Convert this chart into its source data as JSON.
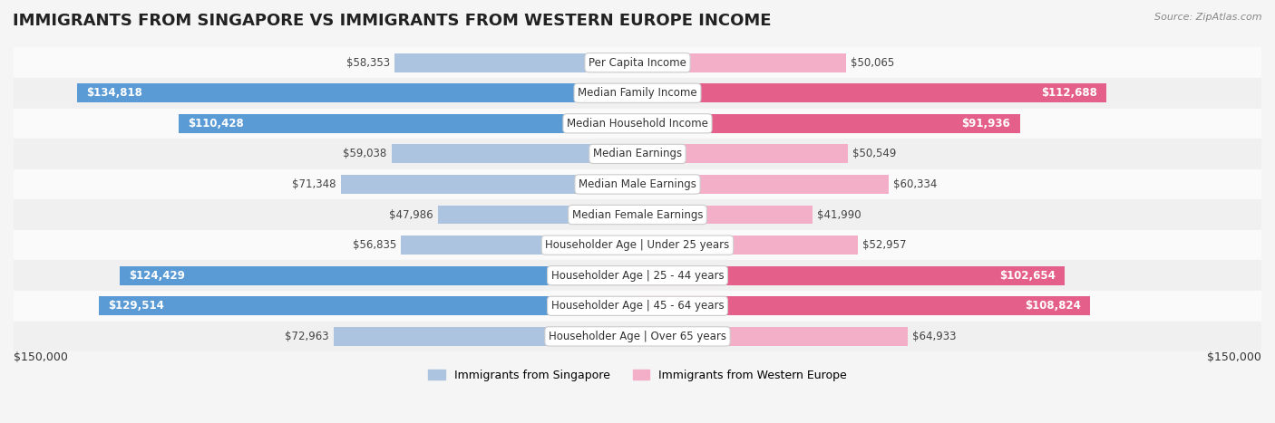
{
  "title": "IMMIGRANTS FROM SINGAPORE VS IMMIGRANTS FROM WESTERN EUROPE INCOME",
  "source": "Source: ZipAtlas.com",
  "categories": [
    "Per Capita Income",
    "Median Family Income",
    "Median Household Income",
    "Median Earnings",
    "Median Male Earnings",
    "Median Female Earnings",
    "Householder Age | Under 25 years",
    "Householder Age | 25 - 44 years",
    "Householder Age | 45 - 64 years",
    "Householder Age | Over 65 years"
  ],
  "singapore_values": [
    58353,
    134818,
    110428,
    59038,
    71348,
    47986,
    56835,
    124429,
    129514,
    72963
  ],
  "western_europe_values": [
    50065,
    112688,
    91936,
    50549,
    60334,
    41990,
    52957,
    102654,
    108824,
    64933
  ],
  "singapore_labels": [
    "$58,353",
    "$134,818",
    "$110,428",
    "$59,038",
    "$71,348",
    "$47,986",
    "$56,835",
    "$124,429",
    "$129,514",
    "$72,963"
  ],
  "western_europe_labels": [
    "$50,065",
    "$112,688",
    "$91,936",
    "$50,549",
    "$60,334",
    "$41,990",
    "$52,957",
    "$102,654",
    "$108,824",
    "$64,933"
  ],
  "singapore_color_light": "#adc4e0",
  "singapore_color_dark": "#5b9bd5",
  "western_europe_color_light": "#f4afc8",
  "western_europe_color_dark": "#e4608a",
  "bar_height": 0.62,
  "max_value": 150000,
  "inside_label_threshold": 0.58,
  "x_axis_label_left": "$150,000",
  "x_axis_label_right": "$150,000",
  "legend_singapore": "Immigrants from Singapore",
  "legend_western_europe": "Immigrants from Western Europe",
  "background_color": "#f5f5f5",
  "row_bg_even": "#f0f0f0",
  "row_bg_odd": "#fafafa",
  "title_fontsize": 13,
  "label_fontsize": 8.5,
  "category_fontsize": 8.5,
  "axis_fontsize": 9
}
